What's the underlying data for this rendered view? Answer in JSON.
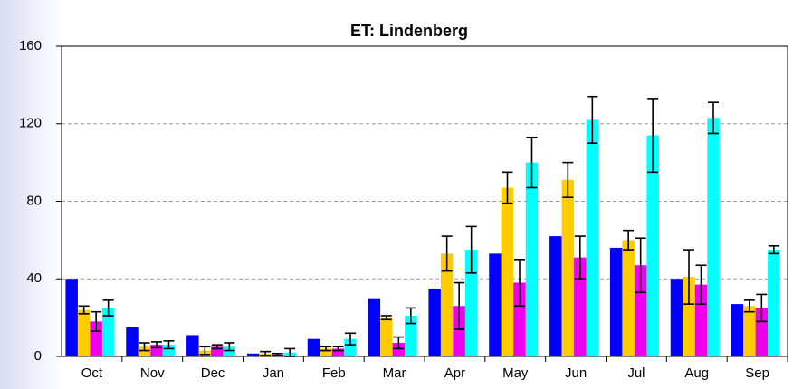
{
  "chart_data": {
    "type": "bar",
    "title": "ET: Lindenberg",
    "categories": [
      "Oct",
      "Nov",
      "Dec",
      "Jan",
      "Feb",
      "Mar",
      "Apr",
      "May",
      "Jun",
      "Jul",
      "Aug",
      "Sep"
    ],
    "series": [
      {
        "color": "#0000ff",
        "values": [
          40,
          15,
          11,
          1.5,
          9,
          30,
          35,
          53,
          62,
          56,
          40,
          27
        ]
      },
      {
        "color": "#ffcc00",
        "values": [
          24,
          5,
          3,
          1.5,
          4,
          20,
          53,
          87,
          91,
          60,
          41,
          26
        ],
        "errors": [
          2,
          2,
          2,
          1,
          1,
          1,
          9,
          8,
          9,
          5,
          14,
          3
        ]
      },
      {
        "color": "#ee00ee",
        "values": [
          18,
          6,
          5,
          1,
          4,
          7,
          26,
          38,
          51,
          47,
          37,
          25
        ],
        "errors": [
          5,
          1.5,
          1,
          0.5,
          1,
          3,
          12,
          12,
          11,
          14,
          10,
          7
        ]
      },
      {
        "color": "#00ffff",
        "values": [
          25,
          6,
          5,
          2,
          9,
          21,
          55,
          100,
          122,
          114,
          123,
          55
        ],
        "errors": [
          4,
          2,
          2,
          2,
          3,
          4,
          12,
          13,
          12,
          19,
          8,
          2
        ]
      }
    ],
    "ylim": [
      0,
      160
    ],
    "yticks": [
      0,
      40,
      80,
      120,
      160
    ],
    "grid": true
  }
}
